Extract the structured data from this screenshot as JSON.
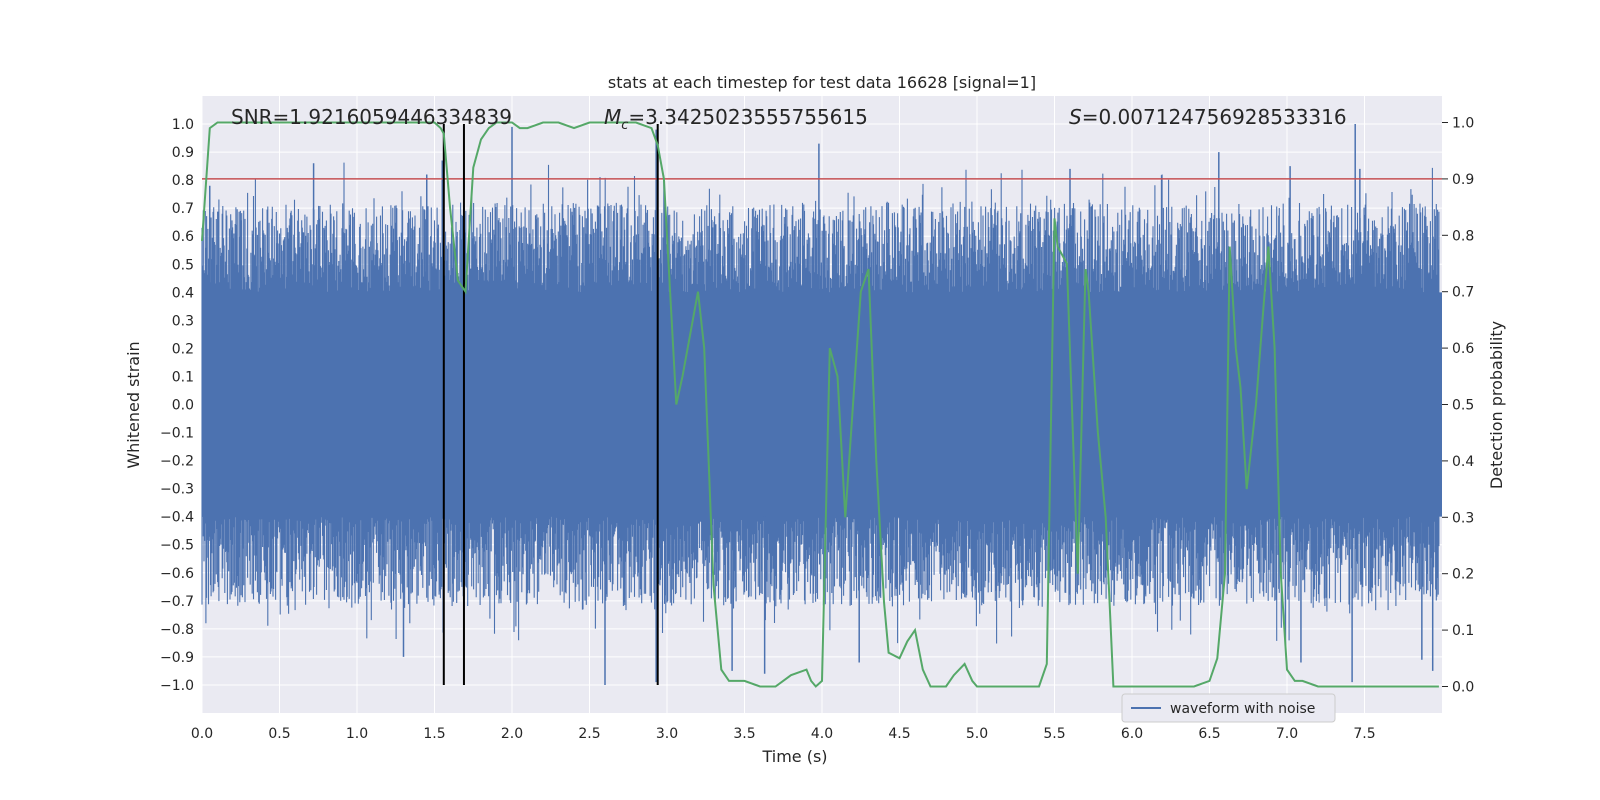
{
  "chart_data": {
    "type": "line",
    "title": "stats at each timestep for test data 16628 [signal=1]",
    "xlabel": "Time (s)",
    "ylabel": "Whitened strain",
    "y2label": "Detection probability",
    "xlim": [
      0.0,
      8.0
    ],
    "ylim": [
      -1.1,
      1.1
    ],
    "y2lim": [
      -0.047,
      1.047
    ],
    "grid": true,
    "x_ticks": [
      0.0,
      0.5,
      1.0,
      1.5,
      2.0,
      2.5,
      3.0,
      3.5,
      4.0,
      4.5,
      5.0,
      5.5,
      6.0,
      6.5,
      7.0,
      7.5
    ],
    "x_tick_labels": [
      "0.0",
      "0.5",
      "1.0",
      "1.5",
      "2.0",
      "2.5",
      "3.0",
      "3.5",
      "4.0",
      "4.5",
      "5.0",
      "5.5",
      "6.0",
      "6.5",
      "7.0",
      "7.5"
    ],
    "y_ticks": [
      1.0,
      0.9,
      0.8,
      0.7,
      0.6,
      0.5,
      0.4,
      0.3,
      0.2,
      0.1,
      0.0,
      -0.1,
      -0.2,
      -0.3,
      -0.4,
      -0.5,
      -0.6,
      -0.7,
      -0.8,
      -0.9,
      -1.0
    ],
    "y_tick_labels": [
      "1.0",
      "0.9",
      "0.8",
      "0.7",
      "0.6",
      "0.5",
      "0.4",
      "0.3",
      "0.2",
      "0.1",
      "0.0",
      "−0.1",
      "−0.2",
      "−0.3",
      "−0.4",
      "−0.5",
      "−0.6",
      "−0.7",
      "−0.8",
      "−0.9",
      "−1.0"
    ],
    "y2_ticks": [
      1.0,
      0.9,
      0.8,
      0.7,
      0.6,
      0.5,
      0.4,
      0.3,
      0.2,
      0.1,
      0.0
    ],
    "y2_tick_labels": [
      "1.0",
      "0.9",
      "0.8",
      "0.7",
      "0.6",
      "0.5",
      "0.4",
      "0.3",
      "0.2",
      "0.1",
      "0.0"
    ],
    "annotations": [
      {
        "text": "SNR=1.9216059446334839",
        "x": 0.2
      },
      {
        "text": "=3.3425023555755615",
        "math": "M",
        "sub": "c",
        "x": 2.6
      },
      {
        "text": "=0.007124756928533316",
        "math": "S",
        "x": 5.6
      }
    ],
    "threshold": {
      "y2": 0.9,
      "color": "#c44e52"
    },
    "vlines": [
      1.56,
      1.69,
      2.94
    ],
    "waveform": {
      "name": "waveform with noise",
      "color": "#4c72b0",
      "t_start": 0.0,
      "t_end": 7.98,
      "dense_core_amplitude": 0.4,
      "peaks_up": [
        {
          "t": 0.05,
          "v": 0.78
        },
        {
          "t": 0.72,
          "v": 0.86
        },
        {
          "t": 1.45,
          "v": 0.82
        },
        {
          "t": 1.55,
          "v": 0.87
        },
        {
          "t": 2.0,
          "v": 0.99
        },
        {
          "t": 2.93,
          "v": 0.98
        },
        {
          "t": 3.98,
          "v": 0.93
        },
        {
          "t": 5.6,
          "v": 0.84
        },
        {
          "t": 6.56,
          "v": 0.9
        },
        {
          "t": 7.02,
          "v": 0.85
        },
        {
          "t": 7.44,
          "v": 1.0
        },
        {
          "t": 7.47,
          "v": 0.84
        }
      ],
      "peaks_down": [
        {
          "t": 1.3,
          "v": -0.9
        },
        {
          "t": 2.6,
          "v": -1.0
        },
        {
          "t": 2.93,
          "v": -0.99
        },
        {
          "t": 3.42,
          "v": -0.95
        },
        {
          "t": 3.63,
          "v": -0.96
        },
        {
          "t": 4.24,
          "v": -0.92
        },
        {
          "t": 6.99,
          "v": -0.86
        },
        {
          "t": 7.09,
          "v": -0.92
        },
        {
          "t": 7.42,
          "v": -0.99
        },
        {
          "t": 7.87,
          "v": -0.91
        },
        {
          "t": 7.94,
          "v": -0.95
        }
      ]
    },
    "probability": {
      "color": "#55a868",
      "t": [
        0.0,
        0.05,
        0.1,
        0.15,
        0.25,
        0.4,
        0.6,
        0.8,
        1.0,
        1.2,
        1.4,
        1.5,
        1.54,
        1.56,
        1.6,
        1.65,
        1.7,
        1.75,
        1.8,
        1.85,
        1.9,
        2.0,
        2.05,
        2.1,
        2.2,
        2.3,
        2.4,
        2.5,
        2.6,
        2.7,
        2.8,
        2.9,
        2.94,
        2.98,
        3.02,
        3.06,
        3.1,
        3.2,
        3.24,
        3.3,
        3.35,
        3.4,
        3.5,
        3.6,
        3.7,
        3.8,
        3.9,
        3.93,
        3.96,
        4.0,
        4.05,
        4.1,
        4.15,
        4.2,
        4.25,
        4.3,
        4.35,
        4.4,
        4.43,
        4.5,
        4.55,
        4.6,
        4.65,
        4.7,
        4.75,
        4.8,
        4.85,
        4.92,
        4.97,
        5.0,
        5.1,
        5.2,
        5.3,
        5.4,
        5.45,
        5.5,
        5.52,
        5.58,
        5.65,
        5.7,
        5.72,
        5.78,
        5.83,
        5.88,
        5.92,
        6.0,
        6.1,
        6.2,
        6.3,
        6.4,
        6.5,
        6.55,
        6.6,
        6.63,
        6.67,
        6.7,
        6.74,
        6.8,
        6.85,
        6.88,
        6.92,
        6.96,
        7.0,
        7.05,
        7.1,
        7.2,
        7.3,
        7.4,
        7.5,
        7.6,
        7.7,
        7.8,
        7.9,
        7.98
      ],
      "p": [
        0.79,
        0.99,
        1.0,
        1.0,
        1.0,
        1.0,
        1.0,
        1.0,
        1.0,
        1.0,
        1.0,
        1.0,
        0.99,
        0.98,
        0.85,
        0.72,
        0.7,
        0.92,
        0.97,
        0.99,
        1.0,
        1.0,
        0.99,
        0.99,
        1.0,
        1.0,
        0.99,
        1.0,
        1.0,
        1.0,
        1.0,
        0.99,
        0.96,
        0.9,
        0.7,
        0.5,
        0.55,
        0.7,
        0.6,
        0.18,
        0.03,
        0.01,
        0.01,
        0.0,
        0.0,
        0.02,
        0.03,
        0.01,
        0.0,
        0.01,
        0.6,
        0.55,
        0.3,
        0.5,
        0.7,
        0.74,
        0.4,
        0.15,
        0.06,
        0.05,
        0.08,
        0.1,
        0.03,
        0.0,
        0.0,
        0.0,
        0.02,
        0.04,
        0.01,
        0.0,
        0.0,
        0.0,
        0.0,
        0.0,
        0.04,
        0.83,
        0.78,
        0.75,
        0.2,
        0.74,
        0.7,
        0.45,
        0.3,
        0.0,
        0.0,
        0.0,
        0.0,
        0.0,
        0.0,
        0.0,
        0.01,
        0.05,
        0.2,
        0.78,
        0.6,
        0.53,
        0.35,
        0.5,
        0.68,
        0.78,
        0.6,
        0.2,
        0.03,
        0.01,
        0.01,
        0.0,
        0.0,
        0.0,
        0.0,
        0.0,
        0.0,
        0.0,
        0.0,
        0.0
      ]
    },
    "legend": {
      "entries": [
        "waveform with noise"
      ],
      "position": "lower-right"
    }
  }
}
